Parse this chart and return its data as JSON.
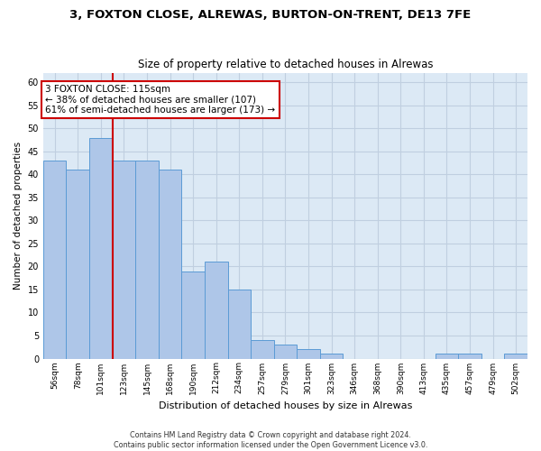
{
  "title": "3, FOXTON CLOSE, ALREWAS, BURTON-ON-TRENT, DE13 7FE",
  "subtitle": "Size of property relative to detached houses in Alrewas",
  "xlabel": "Distribution of detached houses by size in Alrewas",
  "ylabel": "Number of detached properties",
  "categories": [
    "56sqm",
    "78sqm",
    "101sqm",
    "123sqm",
    "145sqm",
    "168sqm",
    "190sqm",
    "212sqm",
    "234sqm",
    "257sqm",
    "279sqm",
    "301sqm",
    "323sqm",
    "346sqm",
    "368sqm",
    "390sqm",
    "413sqm",
    "435sqm",
    "457sqm",
    "479sqm",
    "502sqm"
  ],
  "values": [
    43,
    41,
    48,
    43,
    43,
    41,
    19,
    21,
    15,
    4,
    3,
    2,
    1,
    0,
    0,
    0,
    0,
    1,
    1,
    0,
    1
  ],
  "bar_color": "#aec6e8",
  "bar_edge_color": "#5b9bd5",
  "ylim": [
    0,
    62
  ],
  "yticks": [
    0,
    5,
    10,
    15,
    20,
    25,
    30,
    35,
    40,
    45,
    50,
    55,
    60
  ],
  "annotation_text": "3 FOXTON CLOSE: 115sqm\n← 38% of detached houses are smaller (107)\n61% of semi-detached houses are larger (173) →",
  "vline_color": "#cc0000",
  "annotation_box_edge": "#cc0000",
  "bg_color": "#dce9f5",
  "grid_color": "#c0cfe0",
  "footer_line1": "Contains HM Land Registry data © Crown copyright and database right 2024.",
  "footer_line2": "Contains public sector information licensed under the Open Government Licence v3.0."
}
